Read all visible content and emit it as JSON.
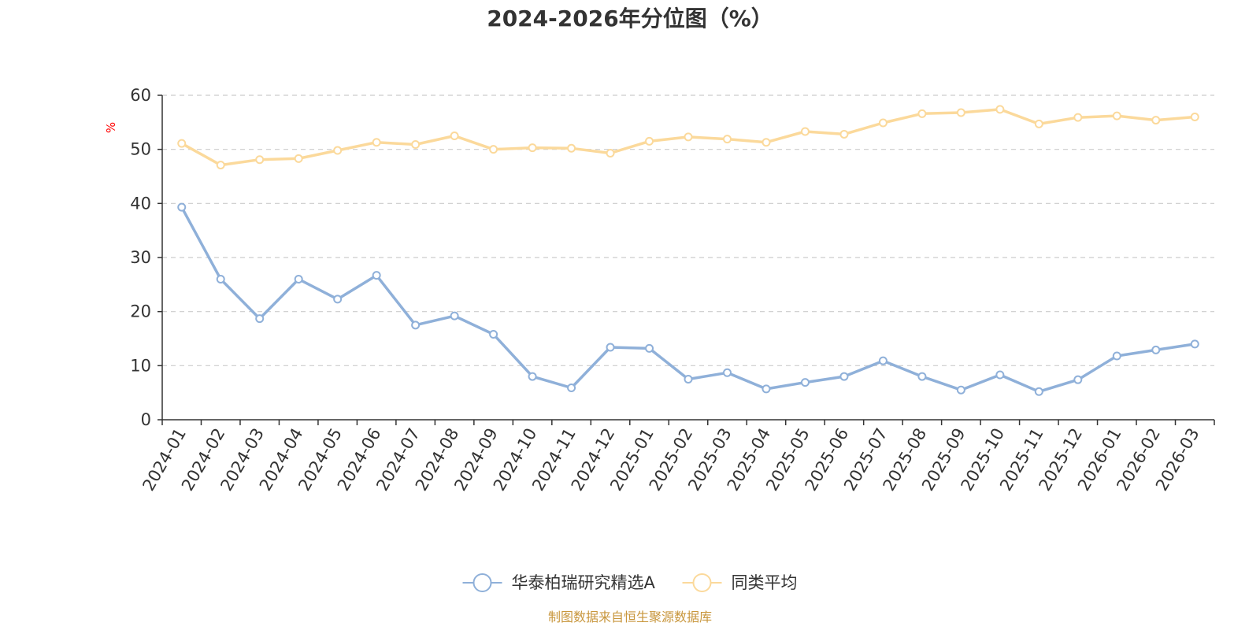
{
  "chart_data": {
    "type": "line",
    "title": "2024-2026年分位图（%）",
    "ylabel": "%",
    "xlabel": "",
    "ylim": [
      0,
      60
    ],
    "yticks": [
      0,
      10,
      20,
      30,
      40,
      50,
      60
    ],
    "grid": true,
    "legend_position": "bottom-center",
    "categories": [
      "2024-01",
      "2024-02",
      "2024-03",
      "2024-04",
      "2024-05",
      "2024-06",
      "2024-07",
      "2024-08",
      "2024-09",
      "2024-10",
      "2024-11",
      "2024-12",
      "2025-01",
      "2025-02",
      "2025-03",
      "2025-04",
      "2025-05",
      "2025-06",
      "2025-07",
      "2025-08",
      "2025-09",
      "2025-10",
      "2025-11",
      "2025-12",
      "2026-01",
      "2026-02",
      "2026-03"
    ],
    "series": [
      {
        "name": "华泰柏瑞研究精选A",
        "color": "#8fb0d9",
        "values": [
          39.3,
          26.0,
          18.7,
          26.0,
          22.3,
          26.7,
          17.5,
          19.2,
          15.8,
          8.0,
          5.9,
          13.4,
          13.2,
          7.5,
          8.7,
          5.7,
          6.9,
          8.0,
          10.9,
          8.0,
          5.5,
          8.3,
          5.2,
          7.4,
          11.8,
          12.9,
          14.0
        ]
      },
      {
        "name": "同类平均",
        "color": "#fbd99b",
        "values": [
          51.1,
          47.1,
          48.1,
          48.3,
          49.8,
          51.3,
          50.9,
          52.5,
          50.0,
          50.3,
          50.2,
          49.3,
          51.5,
          52.3,
          51.9,
          51.3,
          53.3,
          52.8,
          54.9,
          56.6,
          56.8,
          57.4,
          54.7,
          55.9,
          56.2,
          55.4,
          56.0
        ]
      }
    ],
    "source": "制图数据来自恒生聚源数据库"
  },
  "colors": {
    "axis": "#333333",
    "grid": "#cccccc",
    "unit": "#ff0000",
    "source": "#c8963c"
  }
}
